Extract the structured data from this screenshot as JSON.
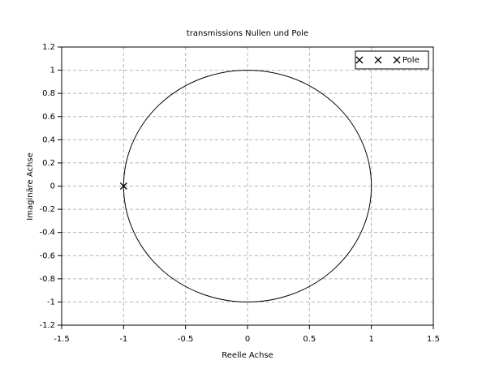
{
  "chart_data": {
    "type": "scatter",
    "title": "transmissions Nullen und Pole",
    "x_label": "Reelle Achse",
    "y_label": "Imaginäre Achse",
    "series": [
      {
        "name": "Pole",
        "color": "#000000",
        "marker": "x",
        "x": [
          -1
        ],
        "values": [
          0
        ]
      }
    ],
    "xlim": [
      -1.5,
      1.5
    ],
    "xticks": [
      -1.5,
      -1,
      -0.5,
      0,
      0.5,
      1,
      1.5
    ],
    "ylim": [
      -1.2,
      1.2
    ],
    "yticks": [
      -1.2,
      -1,
      -0.8,
      -0.6,
      -0.4,
      -0.2,
      0,
      0.2,
      0.4,
      0.6,
      0.8,
      1,
      1.2
    ],
    "grid": true,
    "unit_circle": true,
    "legend": "upper right"
  }
}
